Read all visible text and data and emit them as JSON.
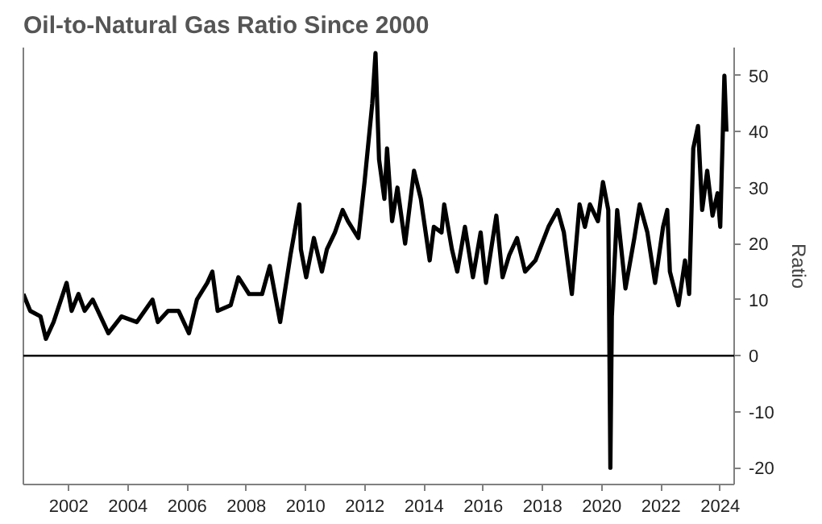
{
  "chart_data": {
    "type": "line",
    "title": "Oil-to-Natural Gas Ratio Since 2000",
    "ylabel": "Ratio",
    "x": [
      2000.47,
      2000.7,
      2001.05,
      2001.23,
      2001.49,
      2001.93,
      2002.1,
      2002.33,
      2002.54,
      2002.81,
      2003.34,
      2003.78,
      2004.3,
      2004.83,
      2005.01,
      2005.36,
      2005.71,
      2006.06,
      2006.33,
      2006.68,
      2006.85,
      2007.03,
      2007.47,
      2007.73,
      2008.09,
      2008.53,
      2008.79,
      2009.14,
      2009.49,
      2009.79,
      2009.84,
      2010.02,
      2010.28,
      2010.55,
      2010.72,
      2010.99,
      2011.25,
      2011.43,
      2011.78,
      2011.99,
      2012.25,
      2012.36,
      2012.48,
      2012.66,
      2012.75,
      2012.92,
      2013.1,
      2013.36,
      2013.66,
      2013.89,
      2014.19,
      2014.33,
      2014.59,
      2014.68,
      2014.94,
      2015.12,
      2015.38,
      2015.65,
      2015.91,
      2016.09,
      2016.44,
      2016.65,
      2016.88,
      2017.14,
      2017.41,
      2017.76,
      2018.2,
      2018.51,
      2018.72,
      2018.99,
      2019.25,
      2019.43,
      2019.6,
      2019.87,
      2020.04,
      2020.22,
      2020.29,
      2020.34,
      2020.52,
      2020.8,
      2021.1,
      2021.28,
      2021.54,
      2021.8,
      2022.07,
      2022.21,
      2022.3,
      2022.59,
      2022.81,
      2022.95,
      2023.09,
      2023.25,
      2023.39,
      2023.56,
      2023.74,
      2023.91,
      2024.0,
      2024.14,
      2024.21
    ],
    "series": [
      {
        "color": "#000000",
        "values": [
          11,
          8,
          7,
          3,
          6,
          13,
          8,
          11,
          8,
          10,
          4,
          7,
          6,
          10,
          6,
          8,
          8,
          4,
          10,
          13,
          15,
          8,
          9,
          14,
          11,
          11,
          16,
          6,
          18,
          27,
          19,
          14,
          21,
          15,
          19,
          22,
          26,
          24,
          21,
          31,
          45,
          54,
          35,
          28,
          37,
          24,
          30,
          20,
          33,
          28,
          17,
          23,
          22,
          27,
          19,
          15,
          23,
          14,
          22,
          13,
          25,
          14,
          18,
          21,
          15,
          17,
          23,
          26,
          22,
          11,
          27,
          23,
          27,
          24,
          31,
          26,
          -20,
          7,
          26,
          12,
          21,
          27,
          22,
          13,
          23,
          26,
          15,
          9,
          17,
          11,
          37,
          41,
          26,
          33,
          25,
          29,
          23,
          50,
          40
        ]
      }
    ],
    "xlim": [
      2000.47,
      2024.47
    ],
    "ylim": [
      -23,
      55
    ],
    "xticks": [
      2002,
      2004,
      2006,
      2008,
      2010,
      2012,
      2014,
      2016,
      2018,
      2020,
      2022,
      2024
    ],
    "yticks": [
      -20,
      -10,
      0,
      10,
      20,
      30,
      40,
      50
    ],
    "ref_lines": [
      {
        "axis": "y",
        "value": 0,
        "color": "#000000"
      }
    ],
    "grid": false
  }
}
